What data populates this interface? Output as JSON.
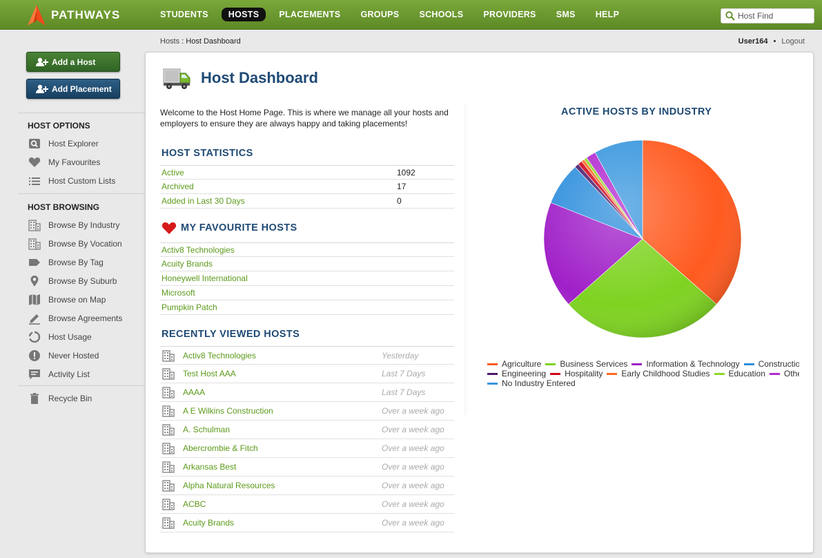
{
  "brand": {
    "name": "PATHWAYS"
  },
  "nav": [
    {
      "label": "STUDENTS",
      "active": false
    },
    {
      "label": "HOSTS",
      "active": true
    },
    {
      "label": "PLACEMENTS",
      "active": false
    },
    {
      "label": "GROUPS",
      "active": false
    },
    {
      "label": "SCHOOLS",
      "active": false
    },
    {
      "label": "PROVIDERS",
      "active": false
    },
    {
      "label": "SMS",
      "active": false
    },
    {
      "label": "HELP",
      "active": false
    }
  ],
  "search": {
    "placeholder": "Host Find"
  },
  "breadcrumb": {
    "parent": "Hosts",
    "separator": " : ",
    "current": "Host Dashboard"
  },
  "user": {
    "name": "User164",
    "separator": "•",
    "logout": "Logout"
  },
  "sidebar": {
    "add_host": "Add a Host",
    "add_placement": "Add Placement",
    "options_heading": "HOST OPTIONS",
    "options": [
      {
        "label": "Host Explorer",
        "icon": "search-box-icon"
      },
      {
        "label": "My Favourites",
        "icon": "heart-icon"
      },
      {
        "label": "Host Custom Lists",
        "icon": "list-icon"
      }
    ],
    "browsing_heading": "HOST BROWSING",
    "browsing": [
      {
        "label": "Browse By Industry",
        "icon": "building-icon"
      },
      {
        "label": "Browse By Vocation",
        "icon": "building-icon"
      },
      {
        "label": "Browse By Tag",
        "icon": "tag-icon"
      },
      {
        "label": "Browse By Suburb",
        "icon": "map-pin-icon"
      },
      {
        "label": "Browse on Map",
        "icon": "map-icon"
      },
      {
        "label": "Browse Agreements",
        "icon": "pencil-icon"
      },
      {
        "label": "Host Usage",
        "icon": "circle-progress-icon"
      },
      {
        "label": "Never Hosted",
        "icon": "alert-icon"
      },
      {
        "label": "Activity List",
        "icon": "chat-icon"
      }
    ],
    "recycle": "Recycle Bin"
  },
  "main": {
    "title": "Host Dashboard",
    "welcome": "Welcome to the Host Home Page. This is where we manage all your hosts and employers to ensure they are always happy and taking placements!",
    "stats_heading": "HOST STATISTICS",
    "stats": [
      {
        "label": "Active",
        "value": "1092"
      },
      {
        "label": "Archived",
        "value": "17"
      },
      {
        "label": "Added in Last 30 Days",
        "value": "0"
      }
    ],
    "favourites_heading": "MY FAVOURITE HOSTS",
    "favourites": [
      "Activ8 Technologies",
      "Acuity Brands",
      "Honeywell International",
      "Microsoft",
      "Pumpkin Patch"
    ],
    "recent_heading": "RECENTLY VIEWED HOSTS",
    "recent": [
      {
        "name": "Activ8 Technologies",
        "when": "Yesterday"
      },
      {
        "name": "Test Host AAA",
        "when": "Last 7 Days"
      },
      {
        "name": "AAAA",
        "when": "Last 7 Days"
      },
      {
        "name": "A E Wilkins Construction",
        "when": "Over a week ago"
      },
      {
        "name": "A. Schulman",
        "when": "Over a week ago"
      },
      {
        "name": "Abercrombie & Fitch",
        "when": "Over a week ago"
      },
      {
        "name": "Arkansas Best",
        "when": "Over a week ago"
      },
      {
        "name": "Alpha Natural Resources",
        "when": "Over a week ago"
      },
      {
        "name": "ACBC",
        "when": "Over a week ago"
      },
      {
        "name": "Acuity Brands",
        "when": "Over a week ago"
      }
    ]
  },
  "chart_data": {
    "type": "pie",
    "title": "ACTIVE HOSTS BY INDUSTRY",
    "legend_position": "bottom",
    "slices": [
      {
        "label": "Agriculture",
        "value": 36.5,
        "color": "#ff5a1f"
      },
      {
        "label": "Business Services",
        "value": 27.0,
        "color": "#7ed321"
      },
      {
        "label": "Information & Technology",
        "value": 17.5,
        "color": "#a020c8"
      },
      {
        "label": "Construction",
        "value": 7.0,
        "color": "#2f8fdc"
      },
      {
        "label": "Engineering",
        "value": 0.7,
        "color": "#4a1a6b"
      },
      {
        "label": "Hospitality",
        "value": 0.7,
        "color": "#d0021b"
      },
      {
        "label": "Early Childhood Studies",
        "value": 0.5,
        "color": "#ff6a1f"
      },
      {
        "label": "Education",
        "value": 0.5,
        "color": "#8ed82a"
      },
      {
        "label": "Other",
        "value": 1.6,
        "color": "#b12ad0"
      },
      {
        "label": "No Industry Entered",
        "value": 8.0,
        "color": "#3a97de"
      }
    ],
    "legend_lines": [
      [
        "Agriculture",
        "Business Services",
        "Information & Technology",
        "Construction"
      ],
      [
        "Engineering",
        "Hospitality",
        "Early Childhood Studies",
        "Education",
        "Other"
      ],
      [
        "No Industry Entered"
      ]
    ]
  }
}
